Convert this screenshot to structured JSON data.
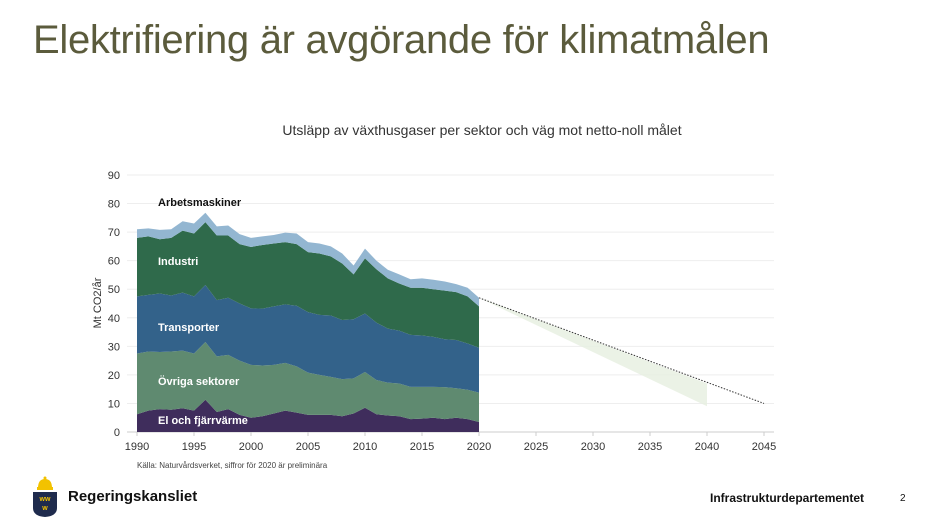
{
  "slide": {
    "title": "Elektrifiering är avgörande för klimatmålen",
    "source": "Källa: Naturvårdsverket, siffror för 2020 är preliminära",
    "organization": "Regeringskansliet",
    "department": "Infrastrukturdepartementet",
    "page_number": "2"
  },
  "chart_data": {
    "type": "area",
    "title": "Utsläpp av växthusgaser per sektor och väg mot netto-noll målet",
    "xlabel": "",
    "ylabel": "Mt CO2/år",
    "xlim": [
      1990,
      2045
    ],
    "ylim": [
      0,
      90
    ],
    "grid": true,
    "x_ticks": [
      1990,
      1995,
      2000,
      2005,
      2010,
      2015,
      2020,
      2025,
      2030,
      2035,
      2040,
      2045
    ],
    "y_ticks": [
      0,
      10,
      20,
      30,
      40,
      50,
      60,
      70,
      80,
      90
    ],
    "x": [
      1990,
      1991,
      1992,
      1993,
      1994,
      1995,
      1996,
      1997,
      1998,
      1999,
      2000,
      2001,
      2002,
      2003,
      2004,
      2005,
      2006,
      2007,
      2008,
      2009,
      2010,
      2011,
      2012,
      2013,
      2014,
      2015,
      2016,
      2017,
      2018,
      2019,
      2020
    ],
    "series": [
      {
        "name": "El och fjärrvärme",
        "color": "#3f2d5c",
        "label_color": "#ffffff",
        "values": [
          6.2,
          7.5,
          8,
          7.8,
          8.3,
          7.5,
          11.3,
          7,
          8,
          6,
          5,
          5.5,
          6.5,
          7.5,
          6.8,
          6,
          6,
          6,
          5.5,
          6.5,
          8.5,
          6.2,
          5.8,
          5.5,
          4.5,
          4.7,
          5,
          4.5,
          5,
          4.5,
          3.5
        ]
      },
      {
        "name": "Övriga sektorer",
        "color": "#5f8a70",
        "label_color": "#ffffff",
        "values": [
          21.3,
          20.7,
          20,
          20.4,
          20.2,
          20,
          20.2,
          19.5,
          19,
          19,
          18.5,
          17.8,
          17,
          16.7,
          16.2,
          14.8,
          14,
          13.3,
          13,
          12.3,
          12.5,
          12,
          11.5,
          11.5,
          11.3,
          11.1,
          10.8,
          11.2,
          10.3,
          10.3,
          10.3
        ]
      },
      {
        "name": "Transporter",
        "color": "#33628a",
        "label_color": "#ffffff",
        "values": [
          20,
          19.8,
          20.5,
          19.6,
          20.3,
          20,
          20,
          19.7,
          20,
          20,
          19.8,
          19.9,
          20.5,
          20.5,
          21.2,
          21.2,
          21,
          21.5,
          20.7,
          20.7,
          20.5,
          20.1,
          18.9,
          18.5,
          18.2,
          18,
          17.5,
          16.8,
          16.9,
          16.2,
          15.7
        ]
      },
      {
        "name": "Industri",
        "color": "#2f6a4b",
        "label_color": "#ffffff",
        "values": [
          20.5,
          20.5,
          19,
          20.2,
          21.7,
          22,
          22,
          22.6,
          21.8,
          20.8,
          21.5,
          22.3,
          22,
          21.8,
          21.6,
          21,
          21.5,
          20.7,
          19.8,
          15.7,
          19.3,
          18.7,
          17.6,
          16.5,
          16.5,
          16.7,
          16.7,
          17,
          16.8,
          16.5,
          14.5
        ]
      },
      {
        "name": "Arbetsmaskiner",
        "color": "#93b6d1",
        "label_color": "#111111",
        "values": [
          3,
          2.8,
          3.3,
          3,
          3.3,
          3.5,
          3.3,
          3.2,
          3.5,
          3.5,
          3.2,
          3,
          3,
          3.3,
          3.7,
          3.5,
          3.5,
          3.5,
          3.5,
          3.1,
          3.4,
          3,
          3,
          3.2,
          3,
          3.3,
          3.3,
          3.2,
          2.8,
          3,
          3
        ]
      }
    ],
    "projection": {
      "x": [
        2020,
        2045
      ],
      "y": [
        47,
        10
      ],
      "style": "dotted"
    },
    "projection_band": {
      "x": [
        2020,
        2040
      ],
      "upper": [
        47,
        17
      ],
      "lower": [
        47,
        9
      ],
      "color": "#e6efe0"
    }
  }
}
